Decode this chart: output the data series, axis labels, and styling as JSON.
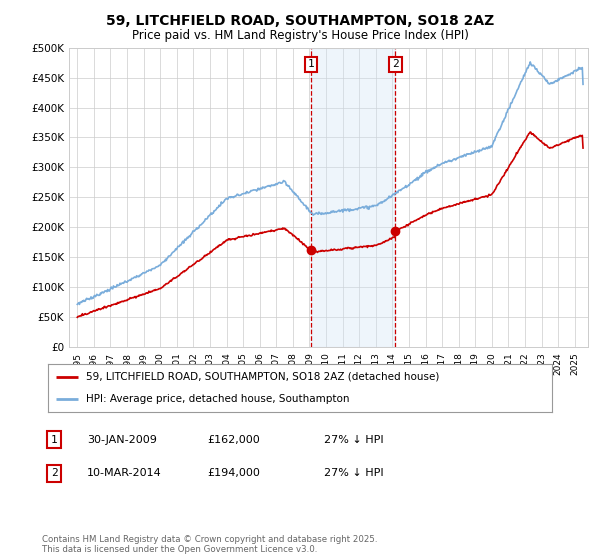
{
  "title": "59, LITCHFIELD ROAD, SOUTHAMPTON, SO18 2AZ",
  "subtitle": "Price paid vs. HM Land Registry's House Price Index (HPI)",
  "ylim": [
    0,
    500000
  ],
  "yticks": [
    0,
    50000,
    100000,
    150000,
    200000,
    250000,
    300000,
    350000,
    400000,
    450000,
    500000
  ],
  "sale1": {
    "date": "30-JAN-2009",
    "price": 162000,
    "label": "1",
    "pct": "27% ↓ HPI"
  },
  "sale2": {
    "date": "10-MAR-2014",
    "price": 194000,
    "label": "2",
    "pct": "27% ↓ HPI"
  },
  "sale1_x": 2009.08,
  "sale2_x": 2014.19,
  "hpi_color": "#7aaddb",
  "price_color": "#cc0000",
  "legend1": "59, LITCHFIELD ROAD, SOUTHAMPTON, SO18 2AZ (detached house)",
  "legend2": "HPI: Average price, detached house, Southampton",
  "footnote": "Contains HM Land Registry data © Crown copyright and database right 2025.\nThis data is licensed under the Open Government Licence v3.0.",
  "background_color": "#ffffff",
  "shaded_region_color": "#d0e4f5",
  "dashed_line_color": "#cc0000",
  "grid_color": "#cccccc"
}
